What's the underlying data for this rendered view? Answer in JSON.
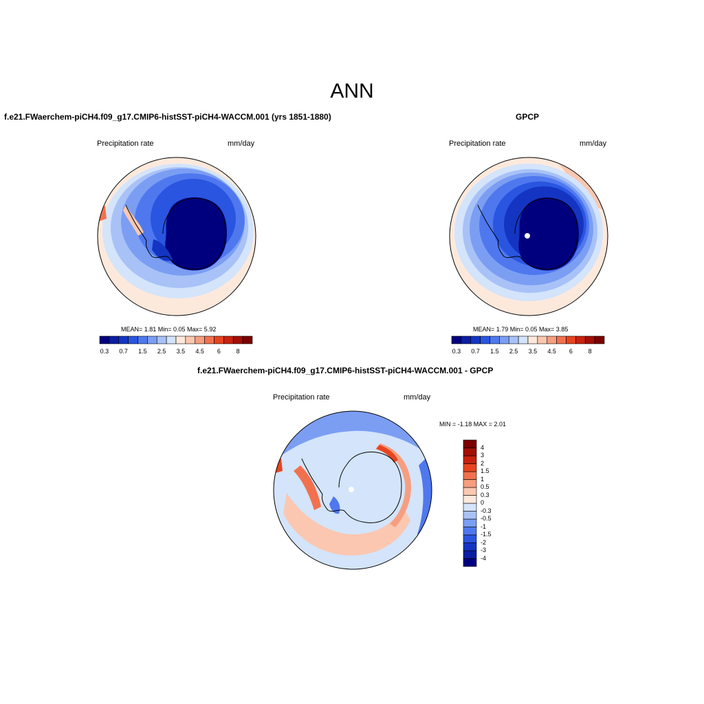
{
  "main_title": "ANN",
  "panel1": {
    "title": "f.e21.FWaerchem-piCH4.f09_g17.CMIP6-histSST-piCH4-WACCM.001 (yrs 1851-1880)",
    "var_label": "Precipitation rate",
    "units": "mm/day",
    "stats": "MEAN=   1.81  Min=   0.05  Max=   5.92"
  },
  "panel2": {
    "title": "GPCP",
    "var_label": "Precipitation rate",
    "units": "mm/day",
    "stats": "MEAN=   1.79  Min=   0.05  Max=   3.85"
  },
  "panel3": {
    "title": "f.e21.FWaerchem-piCH4.f09_g17.CMIP6-histSST-piCH4-WACCM.001 - GPCP",
    "var_label": "Precipitation rate",
    "units": "mm/day",
    "stats": "MIN =  -1.18 MAX =   2.01"
  },
  "colorbar_abs": {
    "colors": [
      "#00007f",
      "#0a1ea0",
      "#1435c2",
      "#2a55e0",
      "#4f78ef",
      "#7b9ef3",
      "#a8c2f7",
      "#d3e4fb",
      "#fde9dc",
      "#fbc7b0",
      "#f79e80",
      "#f1714f",
      "#e84420",
      "#c9210e",
      "#a10f05",
      "#7a0000"
    ],
    "tick_labels": [
      "0.3",
      "0.7",
      "1.5",
      "2.5",
      "3.5",
      "4.5",
      "6",
      "8"
    ]
  },
  "colorbar_diff": {
    "colors": [
      "#00007f",
      "#0a1ea0",
      "#1435c2",
      "#2a55e0",
      "#4f78ef",
      "#7b9ef3",
      "#a8c2f7",
      "#d3e4fb",
      "#fde9dc",
      "#fbc7b0",
      "#f79e80",
      "#f1714f",
      "#e84420",
      "#c9210e",
      "#a10f05",
      "#7a0000"
    ],
    "tick_labels": [
      "-4",
      "-3",
      "-2",
      "-1.5",
      "-1",
      "-0.5",
      "-0.3",
      "0",
      "0.3",
      "0.5",
      "1",
      "1.5",
      "2",
      "3",
      "4"
    ]
  }
}
